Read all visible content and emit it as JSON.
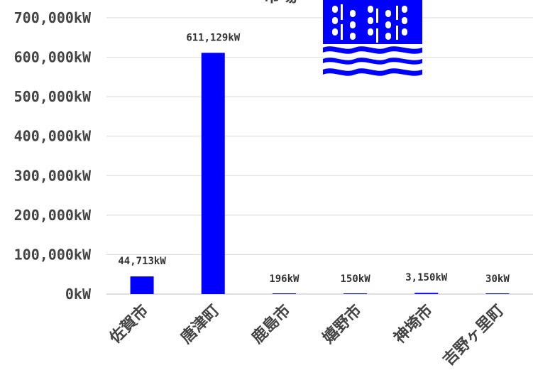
{
  "chart_data": {
    "type": "bar",
    "title_fragment": "市場",
    "categories": [
      "佐賀市",
      "唐津町",
      "鹿島市",
      "嬉野市",
      "神埼市",
      "吉野ヶ里町"
    ],
    "values": [
      44713,
      611129,
      196,
      150,
      3150,
      30
    ],
    "value_labels": [
      "44,713kW",
      "611,129kW",
      "196kW",
      "150kW",
      "3,150kW",
      "30kW"
    ],
    "y_ticks": [
      0,
      100000,
      200000,
      300000,
      400000,
      500000,
      600000,
      700000
    ],
    "y_tick_labels": [
      "0kW",
      "100,000kW",
      "200,000kW",
      "300,000kW",
      "400,000kW",
      "500,000kW",
      "600,000kW",
      "700,000kW"
    ],
    "ylim": [
      0,
      700000
    ],
    "grid": true,
    "bar_color": "#0000ff",
    "xlabel": "",
    "ylabel": ""
  },
  "decoration": {
    "icon": "waterfall-icon",
    "color": "#0000ff"
  }
}
